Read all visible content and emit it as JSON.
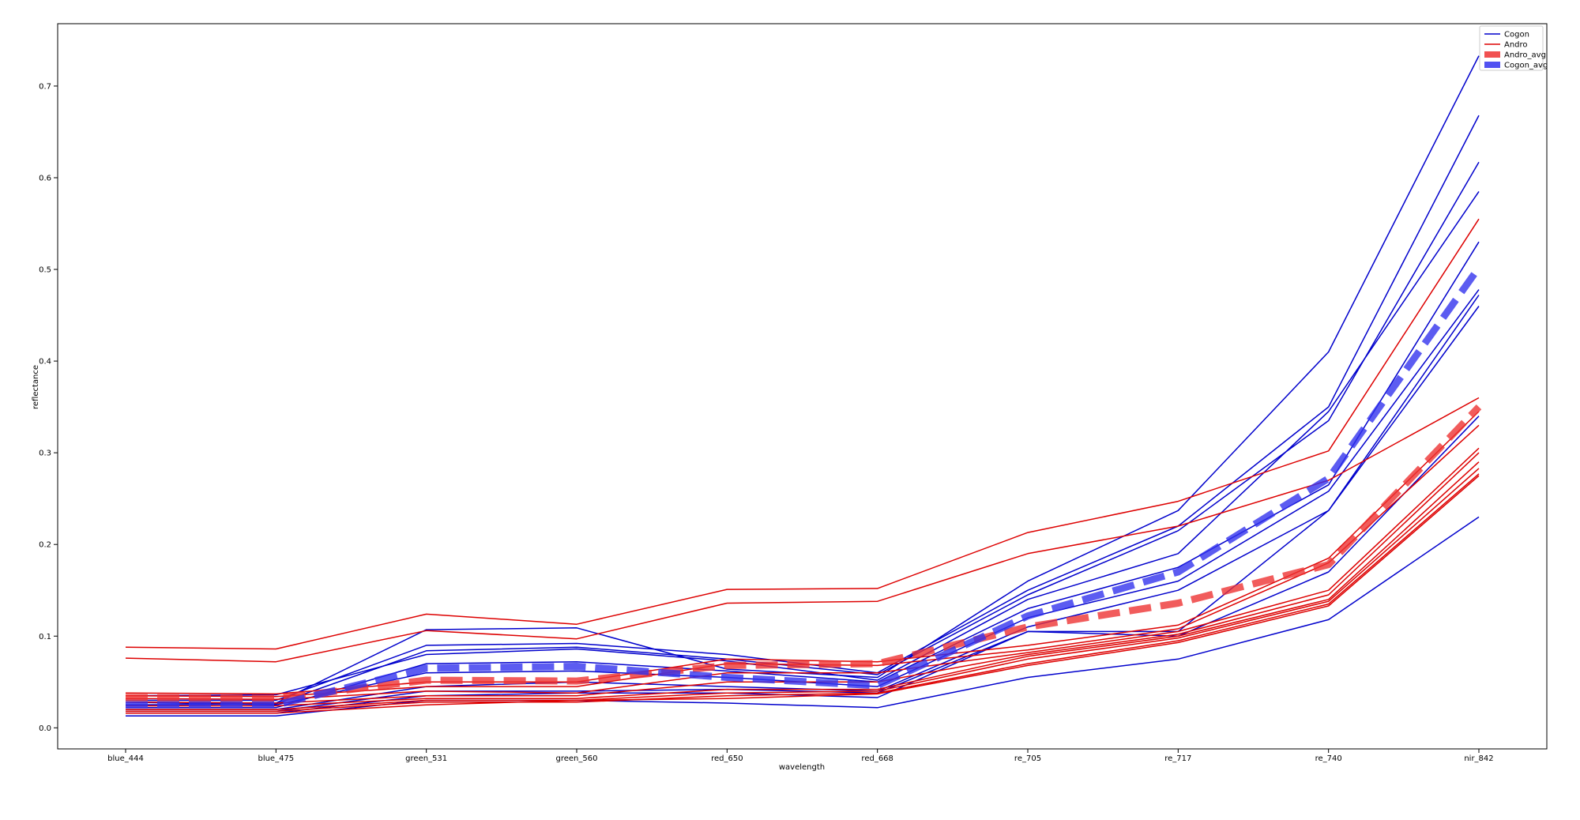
{
  "chart_data": {
    "type": "line",
    "title": "",
    "xlabel": "wavelength",
    "ylabel": "reflectance",
    "categories": [
      "blue_444",
      "blue_475",
      "green_531",
      "green_560",
      "red_650",
      "red_668",
      "re_705",
      "re_717",
      "re_740",
      "nir_842"
    ],
    "ylim": [
      -0.023,
      0.768
    ],
    "yticks": [
      0.0,
      0.1,
      0.2,
      0.3,
      0.4,
      0.5,
      0.6,
      0.7
    ],
    "ytick_labels": [
      "0.0",
      "0.1",
      "0.2",
      "0.3",
      "0.4",
      "0.5",
      "0.6",
      "0.7"
    ],
    "grid": false,
    "legend_position": "top-right",
    "legend": [
      {
        "label": "Cogon",
        "color": "#0000cc",
        "style": "line"
      },
      {
        "label": "Andro",
        "color": "#dd0000",
        "style": "line"
      },
      {
        "label": "Andro_avg",
        "color": "#ee3333",
        "style": "patch"
      },
      {
        "label": "Cogon_avg",
        "color": "#3333ee",
        "style": "patch"
      }
    ],
    "series": [
      {
        "name": "Cogon",
        "color": "#0000cc",
        "values": [
          0.028,
          0.027,
          0.107,
          0.109,
          0.064,
          0.055,
          0.16,
          0.237,
          0.41,
          0.733
        ]
      },
      {
        "name": "Cogon",
        "color": "#0000cc",
        "values": [
          0.03,
          0.03,
          0.09,
          0.092,
          0.08,
          0.06,
          0.15,
          0.22,
          0.35,
          0.668
        ]
      },
      {
        "name": "Cogon",
        "color": "#0000cc",
        "values": [
          0.025,
          0.026,
          0.084,
          0.088,
          0.075,
          0.058,
          0.145,
          0.215,
          0.335,
          0.617
        ]
      },
      {
        "name": "Cogon",
        "color": "#0000cc",
        "values": [
          0.035,
          0.036,
          0.08,
          0.086,
          0.073,
          0.052,
          0.14,
          0.19,
          0.345,
          0.585
        ]
      },
      {
        "name": "Cogon",
        "color": "#0000cc",
        "values": [
          0.022,
          0.022,
          0.07,
          0.072,
          0.062,
          0.05,
          0.13,
          0.175,
          0.265,
          0.53
        ]
      },
      {
        "name": "Cogon",
        "color": "#0000cc",
        "values": [
          0.028,
          0.025,
          0.06,
          0.062,
          0.055,
          0.045,
          0.12,
          0.16,
          0.258,
          0.478
        ]
      },
      {
        "name": "Cogon",
        "color": "#0000cc",
        "values": [
          0.02,
          0.02,
          0.045,
          0.05,
          0.045,
          0.04,
          0.11,
          0.15,
          0.237,
          0.472
        ]
      },
      {
        "name": "Cogon",
        "color": "#0000cc",
        "values": [
          0.018,
          0.018,
          0.04,
          0.04,
          0.042,
          0.038,
          0.105,
          0.105,
          0.237,
          0.46
        ]
      },
      {
        "name": "Cogon",
        "color": "#0000cc",
        "values": [
          0.016,
          0.016,
          0.035,
          0.038,
          0.038,
          0.033,
          0.105,
          0.1,
          0.17,
          0.34
        ]
      },
      {
        "name": "Cogon",
        "color": "#0000cc",
        "values": [
          0.013,
          0.013,
          0.03,
          0.03,
          0.027,
          0.022,
          0.055,
          0.075,
          0.118,
          0.23
        ]
      },
      {
        "name": "Andro",
        "color": "#dd0000",
        "values": [
          0.088,
          0.086,
          0.124,
          0.113,
          0.151,
          0.152,
          0.213,
          0.247,
          0.302,
          0.555
        ]
      },
      {
        "name": "Andro",
        "color": "#dd0000",
        "values": [
          0.076,
          0.072,
          0.106,
          0.097,
          0.136,
          0.138,
          0.19,
          0.22,
          0.27,
          0.36
        ]
      },
      {
        "name": "Andro",
        "color": "#dd0000",
        "values": [
          0.038,
          0.037,
          0.05,
          0.05,
          0.075,
          0.072,
          0.09,
          0.112,
          0.185,
          0.345
        ]
      },
      {
        "name": "Andro",
        "color": "#dd0000",
        "values": [
          0.035,
          0.034,
          0.045,
          0.045,
          0.07,
          0.068,
          0.085,
          0.108,
          0.18,
          0.33
        ]
      },
      {
        "name": "Andro",
        "color": "#dd0000",
        "values": [
          0.032,
          0.031,
          0.04,
          0.038,
          0.06,
          0.06,
          0.082,
          0.105,
          0.15,
          0.305
        ]
      },
      {
        "name": "Andro",
        "color": "#dd0000",
        "values": [
          0.028,
          0.027,
          0.035,
          0.035,
          0.05,
          0.05,
          0.08,
          0.102,
          0.145,
          0.3
        ]
      },
      {
        "name": "Andro",
        "color": "#dd0000",
        "values": [
          0.024,
          0.024,
          0.032,
          0.032,
          0.042,
          0.042,
          0.078,
          0.1,
          0.14,
          0.29
        ]
      },
      {
        "name": "Andro",
        "color": "#dd0000",
        "values": [
          0.02,
          0.02,
          0.03,
          0.03,
          0.038,
          0.04,
          0.075,
          0.098,
          0.138,
          0.283
        ]
      },
      {
        "name": "Andro",
        "color": "#dd0000",
        "values": [
          0.018,
          0.018,
          0.028,
          0.028,
          0.035,
          0.038,
          0.07,
          0.095,
          0.135,
          0.277
        ]
      },
      {
        "name": "Andro",
        "color": "#dd0000",
        "values": [
          0.016,
          0.016,
          0.025,
          0.03,
          0.032,
          0.037,
          0.068,
          0.093,
          0.133,
          0.275
        ]
      },
      {
        "name": "Andro_avg",
        "color": "#ee3333",
        "dashed": true,
        "values": [
          0.033,
          0.032,
          0.052,
          0.051,
          0.068,
          0.07,
          0.11,
          0.136,
          0.178,
          0.35
        ]
      },
      {
        "name": "Cogon_avg",
        "color": "#3333ee",
        "dashed": true,
        "values": [
          0.025,
          0.025,
          0.065,
          0.067,
          0.055,
          0.046,
          0.122,
          0.17,
          0.272,
          0.502
        ]
      }
    ]
  }
}
